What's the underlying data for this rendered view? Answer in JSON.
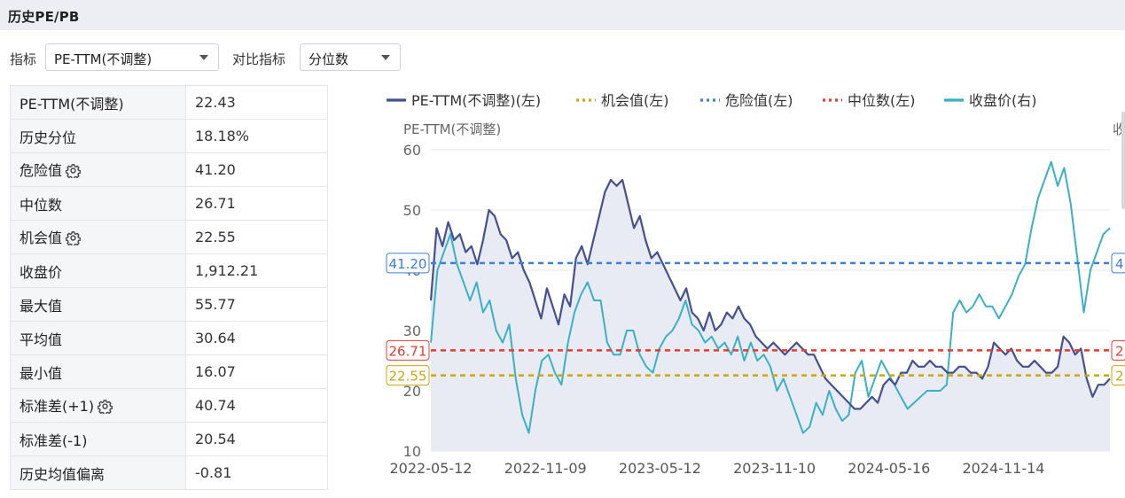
{
  "header": {
    "title": "历史PE/PB"
  },
  "toolbar": {
    "metric_label": "指标",
    "metric_value": "PE-TTM(不调整)",
    "compare_label": "对比指标",
    "compare_value": "分位数"
  },
  "stats": [
    {
      "label": "PE-TTM(不调整)",
      "value": "22.43",
      "gear": false
    },
    {
      "label": "历史分位",
      "value": "18.18%",
      "gear": false
    },
    {
      "label": "危险值",
      "value": "41.20",
      "gear": true
    },
    {
      "label": "中位数",
      "value": "26.71",
      "gear": false
    },
    {
      "label": "机会值",
      "value": "22.55",
      "gear": true
    },
    {
      "label": "收盘价",
      "value": "1,912.21",
      "gear": false
    },
    {
      "label": "最大值",
      "value": "55.77",
      "gear": false
    },
    {
      "label": "平均值",
      "value": "30.64",
      "gear": false
    },
    {
      "label": "最小值",
      "value": "16.07",
      "gear": false
    },
    {
      "label": "标准差(+1)",
      "value": "40.74",
      "gear": true
    },
    {
      "label": "标准差(-1)",
      "value": "20.54",
      "gear": false
    },
    {
      "label": "历史均值偏离",
      "value": "-0.81",
      "gear": false
    }
  ],
  "chart_data": {
    "type": "line",
    "ylabel": "PE-TTM(不调整)",
    "ylabel_right_visible": "收",
    "ylim": [
      10,
      60
    ],
    "yticks": [
      10,
      20,
      30,
      40,
      50,
      60
    ],
    "xticks": [
      "2022-05-12",
      "2022-11-09",
      "2023-05-12",
      "2023-11-10",
      "2024-05-16",
      "2024-11-14"
    ],
    "grid": true,
    "legend_position": "top",
    "reference_lines": [
      {
        "name": "危险值(左)",
        "value": 41.2,
        "label": "41.20",
        "color": "#3b7de0"
      },
      {
        "name": "中位数(左)",
        "value": 26.71,
        "label": "26.71",
        "color": "#e63b2e"
      },
      {
        "name": "机会值(左)",
        "value": 22.55,
        "label": "22.55",
        "color": "#c9a70d"
      }
    ],
    "right_axis_partial_labels": [
      "4",
      "2",
      "2"
    ],
    "series": [
      {
        "name": "PE-TTM(不调整)(左)",
        "axis": "left",
        "color": "#45508f",
        "values": [
          35,
          47,
          44,
          48,
          45,
          46,
          43,
          44,
          41,
          45,
          50,
          49,
          46,
          45,
          42,
          43,
          40,
          38,
          35,
          32,
          37,
          34,
          31,
          36,
          34,
          42,
          44,
          41,
          45,
          49,
          53,
          55,
          54,
          55,
          51,
          47,
          49,
          45,
          42,
          43,
          41,
          39,
          37,
          35,
          37,
          33,
          32,
          30,
          33,
          30,
          31,
          33,
          32,
          34,
          32,
          31,
          29,
          28,
          27,
          28,
          27,
          26,
          27,
          28,
          27,
          26,
          26,
          24,
          22,
          21,
          20,
          19,
          18,
          17,
          17,
          18,
          19,
          18,
          21,
          22,
          21,
          23,
          23,
          25,
          24,
          24,
          25,
          24,
          24,
          23,
          23,
          24,
          24,
          23,
          23,
          22,
          24,
          28,
          27,
          26,
          27,
          25,
          24,
          24,
          25,
          24,
          23,
          23,
          24,
          29,
          28,
          26,
          27,
          22,
          19,
          21,
          21,
          22
        ]
      },
      {
        "name": "收盘价(右)",
        "axis": "right",
        "color": "#3ab0c8",
        "values": [
          28,
          40,
          43,
          46,
          41,
          38,
          35,
          38,
          33,
          35,
          30,
          28,
          31,
          22,
          16,
          13,
          20,
          25,
          26,
          23,
          21,
          28,
          33,
          36,
          38,
          35,
          35,
          28,
          26,
          26,
          30,
          30,
          26,
          24,
          23,
          27,
          29,
          30,
          32,
          35,
          31,
          30,
          28,
          29,
          27,
          28,
          26,
          29,
          25,
          28,
          25,
          26,
          24,
          20,
          22,
          19,
          16,
          13,
          14,
          18,
          16,
          20,
          17,
          15,
          16,
          23,
          25,
          19,
          22,
          25,
          23,
          21,
          19,
          17,
          18,
          19,
          20,
          20,
          20,
          21,
          33,
          35,
          33,
          34,
          36,
          34,
          34,
          32,
          34,
          36,
          39,
          41,
          47,
          52,
          55,
          58,
          54,
          57,
          51,
          42,
          33,
          40,
          43,
          46,
          47
        ]
      },
      {
        "name": "机会值(左)",
        "axis": "left",
        "color": "#c9a70d",
        "values": [
          22.55
        ]
      },
      {
        "name": "危险值(左)",
        "axis": "left",
        "color": "#3b7de0",
        "values": [
          41.2
        ]
      },
      {
        "name": "中位数(左)",
        "axis": "left",
        "color": "#e63b2e",
        "values": [
          26.71
        ]
      }
    ]
  }
}
